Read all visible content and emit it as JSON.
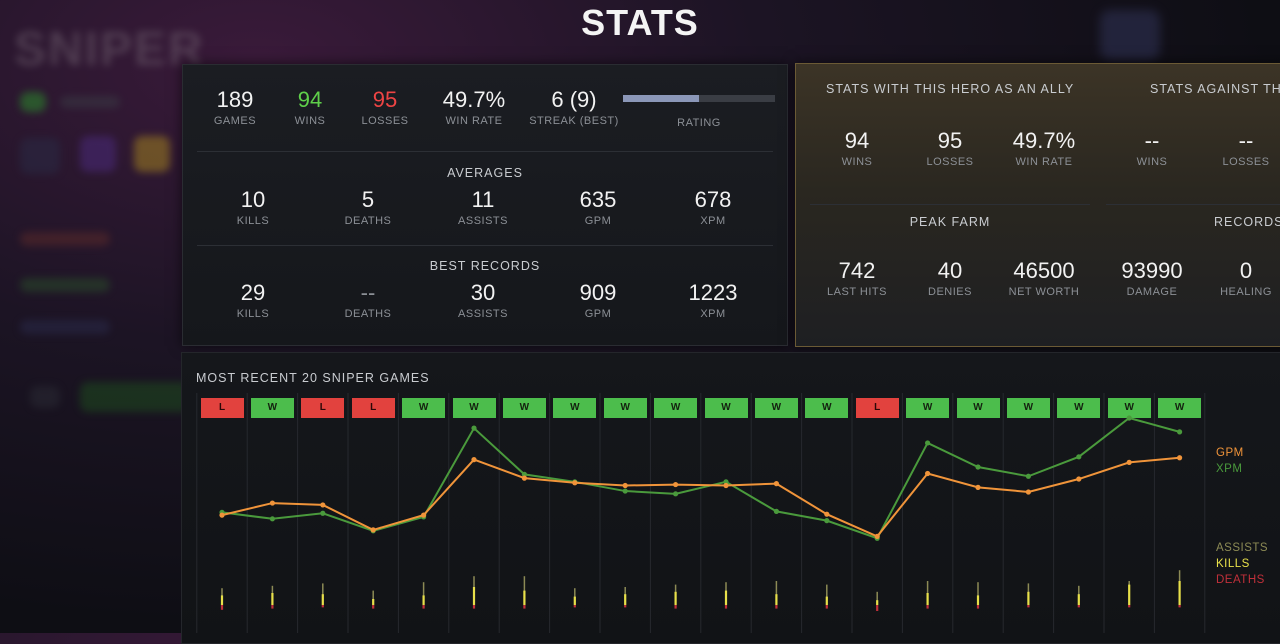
{
  "page_title": "STATS",
  "background": {
    "hero_name": "SNIPER"
  },
  "summary": {
    "games": {
      "value": "189",
      "label": "GAMES"
    },
    "wins": {
      "value": "94",
      "label": "WINS"
    },
    "losses": {
      "value": "95",
      "label": "LOSSES"
    },
    "win_rate": {
      "value": "49.7%",
      "label": "WIN RATE"
    },
    "streak": {
      "value": "6 (9)",
      "label": "STREAK (BEST)"
    },
    "rating": {
      "label": "RATING",
      "fill_fraction": 0.5
    }
  },
  "averages": {
    "title": "AVERAGES",
    "items": [
      {
        "value": "10",
        "label": "KILLS"
      },
      {
        "value": "5",
        "label": "DEATHS"
      },
      {
        "value": "11",
        "label": "ASSISTS"
      },
      {
        "value": "635",
        "label": "GPM"
      },
      {
        "value": "678",
        "label": "XPM"
      }
    ]
  },
  "best_records": {
    "title": "BEST RECORDS",
    "items": [
      {
        "value": "29",
        "label": "KILLS"
      },
      {
        "value": "--",
        "label": "DEATHS"
      },
      {
        "value": "30",
        "label": "ASSISTS"
      },
      {
        "value": "909",
        "label": "GPM"
      },
      {
        "value": "1223",
        "label": "XPM"
      }
    ]
  },
  "ally": {
    "title_ally": "STATS WITH THIS HERO AS AN ALLY",
    "title_against": "STATS AGAINST TH",
    "ally_items": [
      {
        "value": "94",
        "label": "WINS"
      },
      {
        "value": "95",
        "label": "LOSSES"
      },
      {
        "value": "49.7%",
        "label": "WIN RATE"
      }
    ],
    "against_items": [
      {
        "value": "--",
        "label": "WINS"
      },
      {
        "value": "--",
        "label": "LOSSES"
      }
    ],
    "peak_farm_title": "PEAK FARM",
    "records_title": "RECORDS",
    "peak_items": [
      {
        "value": "742",
        "label": "LAST HITS"
      },
      {
        "value": "40",
        "label": "DENIES"
      },
      {
        "value": "46500",
        "label": "NET WORTH"
      }
    ],
    "record_items": [
      {
        "value": "93990",
        "label": "DAMAGE"
      },
      {
        "value": "0",
        "label": "HEALING"
      }
    ]
  },
  "recent_games": {
    "title": "MOST RECENT 20 SNIPER GAMES",
    "results": [
      "L",
      "W",
      "L",
      "L",
      "W",
      "W",
      "W",
      "W",
      "W",
      "W",
      "W",
      "W",
      "W",
      "L",
      "W",
      "W",
      "W",
      "W",
      "W",
      "W"
    ],
    "legend": {
      "gpm": "GPM",
      "xpm": "XPM",
      "assists": "ASSISTS",
      "kills": "KILLS",
      "deaths": "DEATHS"
    },
    "colors": {
      "gpm": "#f0943a",
      "xpm": "#4a9a3c",
      "assists": "#8c8a55",
      "kills": "#e8e04a",
      "deaths": "#c0303a"
    }
  },
  "chart_data": {
    "type": "line",
    "x": [
      1,
      2,
      3,
      4,
      5,
      6,
      7,
      8,
      9,
      10,
      11,
      12,
      13,
      14,
      15,
      16,
      17,
      18,
      19,
      20
    ],
    "ylim": [
      0,
      1000
    ],
    "series": [
      {
        "name": "GPM",
        "values": [
          540,
          605,
          595,
          460,
          540,
          840,
          740,
          715,
          700,
          705,
          700,
          710,
          545,
          425,
          765,
          690,
          665,
          735,
          825,
          850
        ]
      },
      {
        "name": "XPM",
        "values": [
          555,
          520,
          550,
          455,
          530,
          1010,
          760,
          720,
          670,
          655,
          720,
          560,
          510,
          415,
          930,
          800,
          750,
          855,
          1065,
          990
        ]
      },
      {
        "name": "ASSISTS",
        "values": [
          14,
          16,
          18,
          12,
          19,
          24,
          24,
          14,
          15,
          17,
          19,
          20,
          17,
          11,
          20,
          19,
          18,
          16,
          20,
          29
        ]
      },
      {
        "name": "KILLS",
        "values": [
          8,
          10,
          9,
          5,
          8,
          15,
          12,
          7,
          9,
          11,
          12,
          9,
          7,
          4,
          10,
          8,
          11,
          9,
          17,
          20
        ]
      },
      {
        "name": "DEATHS",
        "values": [
          4,
          3,
          2,
          3,
          3,
          3,
          3,
          2,
          2,
          3,
          3,
          3,
          3,
          5,
          3,
          3,
          2,
          2,
          2,
          2
        ]
      }
    ]
  }
}
